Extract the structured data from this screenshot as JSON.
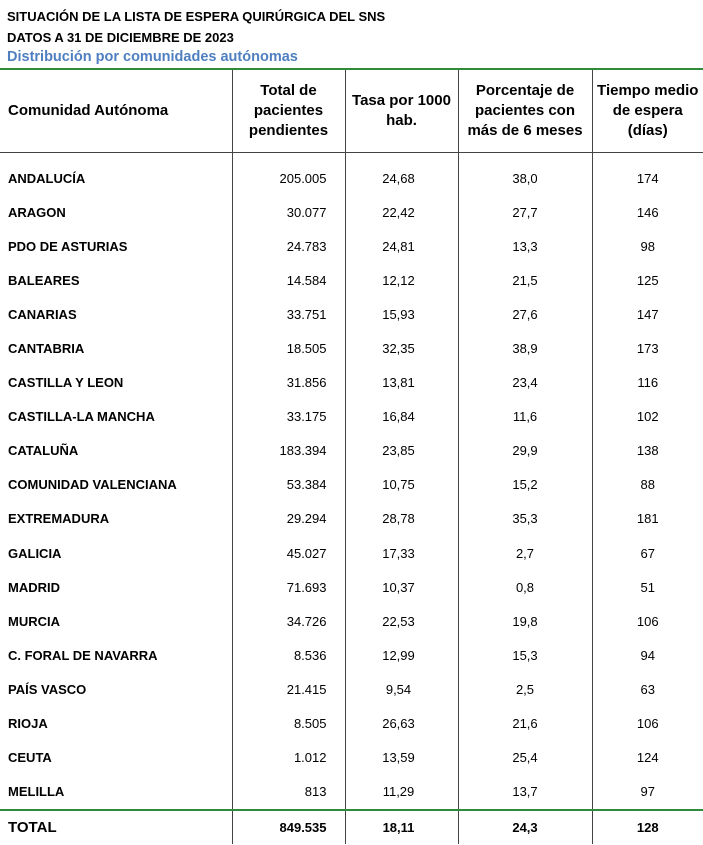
{
  "header": {
    "title": "SITUACIÓN DE LA LISTA DE ESPERA QUIRÚRGICA DEL SNS",
    "date": "DATOS A 31 DE DICIEMBRE DE 2023",
    "subtitle": "Distribución por comunidades autónomas"
  },
  "table": {
    "columns": [
      "Comunidad Autónoma",
      "Total de pacientes pendientes",
      "Tasa por 1000 hab.",
      "Porcentaje de pacientes con más de 6 meses",
      "Tiempo medio de espera (días)"
    ],
    "rows": [
      [
        "ANDALUCÍA",
        "205.005",
        "24,68",
        "38,0",
        "174"
      ],
      [
        "ARAGON",
        "30.077",
        "22,42",
        "27,7",
        "146"
      ],
      [
        "PDO DE ASTURIAS",
        "24.783",
        "24,81",
        "13,3",
        "98"
      ],
      [
        "BALEARES",
        "14.584",
        "12,12",
        "21,5",
        "125"
      ],
      [
        "CANARIAS",
        "33.751",
        "15,93",
        "27,6",
        "147"
      ],
      [
        "CANTABRIA",
        "18.505",
        "32,35",
        "38,9",
        "173"
      ],
      [
        "CASTILLA Y LEON",
        "31.856",
        "13,81",
        "23,4",
        "116"
      ],
      [
        "CASTILLA-LA MANCHA",
        "33.175",
        "16,84",
        "11,6",
        "102"
      ],
      [
        "CATALUÑA",
        "183.394",
        "23,85",
        "29,9",
        "138"
      ],
      [
        "COMUNIDAD VALENCIANA",
        "53.384",
        "10,75",
        "15,2",
        "88"
      ],
      [
        "EXTREMADURA",
        "29.294",
        "28,78",
        "35,3",
        "181"
      ],
      [
        "GALICIA",
        "45.027",
        "17,33",
        "2,7",
        "67"
      ],
      [
        "MADRID",
        "71.693",
        "10,37",
        "0,8",
        "51"
      ],
      [
        "MURCIA",
        "34.726",
        "22,53",
        "19,8",
        "106"
      ],
      [
        "C. FORAL DE NAVARRA",
        "8.536",
        "12,99",
        "15,3",
        "94"
      ],
      [
        "PAÍS VASCO",
        "21.415",
        "9,54",
        "2,5",
        "63"
      ],
      [
        "RIOJA",
        "8.505",
        "26,63",
        "21,6",
        "106"
      ],
      [
        "CEUTA",
        "1.012",
        "13,59",
        "25,4",
        "124"
      ],
      [
        "MELILLA",
        "813",
        "11,29",
        "13,7",
        "97"
      ]
    ],
    "total": [
      "TOTAL",
      "849.535",
      "18,11",
      "24,3",
      "128"
    ]
  }
}
